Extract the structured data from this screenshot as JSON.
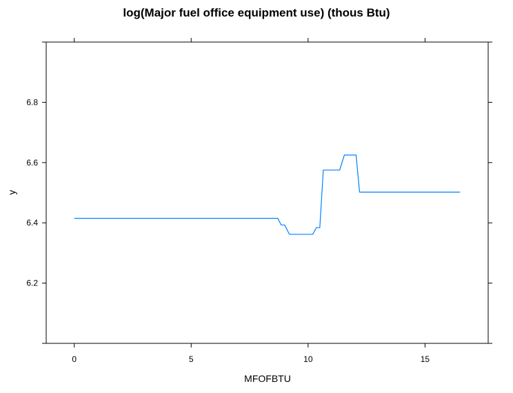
{
  "chart_data": {
    "type": "line",
    "title": "log(Major fuel office equipment use) (thous Btu)",
    "xlabel": "MFOFBTU",
    "ylabel": "y",
    "xlim": [
      -1.2,
      17.7
    ],
    "ylim": [
      6.0,
      7.0
    ],
    "xticks": [
      0,
      5,
      10,
      15
    ],
    "yticks": [
      6.2,
      6.4,
      6.6,
      6.8
    ],
    "grid": false,
    "series": [
      {
        "color": "#0080ff",
        "x": [
          0,
          8.7,
          8.85,
          9.0,
          9.2,
          10.2,
          10.35,
          10.5,
          10.65,
          11.35,
          11.55,
          12.05,
          12.2,
          16.5
        ],
        "y": [
          6.415,
          6.415,
          6.393,
          6.393,
          6.362,
          6.362,
          6.384,
          6.384,
          6.575,
          6.575,
          6.625,
          6.625,
          6.502,
          6.502
        ]
      }
    ]
  }
}
